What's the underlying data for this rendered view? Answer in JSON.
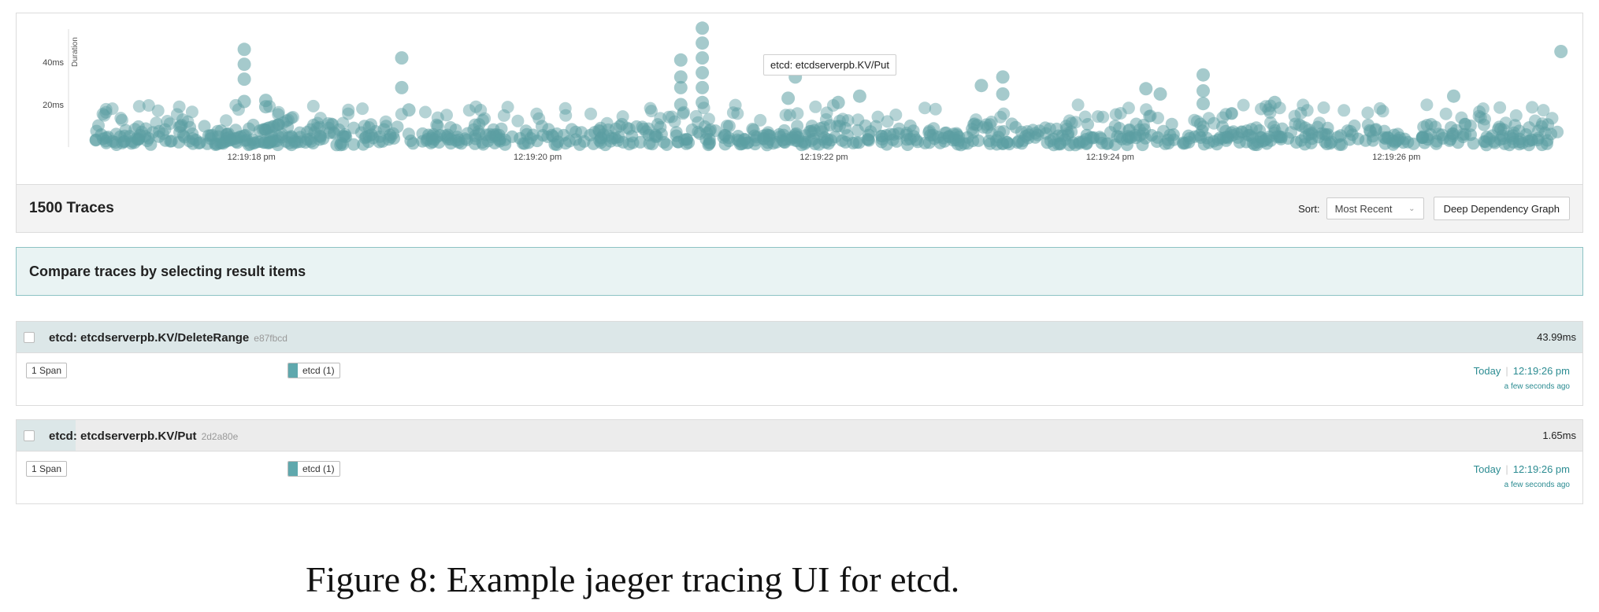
{
  "chart_data": {
    "type": "scatter",
    "title": "",
    "ylabel": "Duration",
    "xlabel": "",
    "y_ticks": [
      "40ms",
      "20ms"
    ],
    "y_tick_values": [
      40,
      20
    ],
    "x_ticks": [
      "12:19:18 pm",
      "12:19:20 pm",
      "12:19:22 pm",
      "12:19:24 pm",
      "12:19:26 pm"
    ],
    "x_tick_values": [
      18,
      20,
      22,
      24,
      26
    ],
    "xlim": [
      16.7,
      27.3
    ],
    "ylim": [
      0,
      60
    ],
    "grid": false,
    "point_color": "#5b9ea2",
    "tooltip": "etcd: etcdserverpb.KV/Put",
    "outliers": [
      {
        "x": 17.95,
        "y": 46.0
      },
      {
        "x": 17.95,
        "y": 39.0
      },
      {
        "x": 17.95,
        "y": 32.0
      },
      {
        "x": 17.95,
        "y": 21.5
      },
      {
        "x": 18.1,
        "y": 22.0
      },
      {
        "x": 18.1,
        "y": 19.0
      },
      {
        "x": 19.05,
        "y": 42.0
      },
      {
        "x": 19.05,
        "y": 28.0
      },
      {
        "x": 19.1,
        "y": 17.5
      },
      {
        "x": 21.0,
        "y": 41.0
      },
      {
        "x": 21.0,
        "y": 33.0
      },
      {
        "x": 21.0,
        "y": 28.0
      },
      {
        "x": 21.0,
        "y": 20.0
      },
      {
        "x": 21.15,
        "y": 56.0
      },
      {
        "x": 21.15,
        "y": 49.0
      },
      {
        "x": 21.15,
        "y": 42.0
      },
      {
        "x": 21.15,
        "y": 35.0
      },
      {
        "x": 21.15,
        "y": 28.0
      },
      {
        "x": 21.15,
        "y": 21.0
      },
      {
        "x": 21.8,
        "y": 33.0
      },
      {
        "x": 21.75,
        "y": 23.0
      },
      {
        "x": 22.1,
        "y": 21.0
      },
      {
        "x": 22.25,
        "y": 24.0
      },
      {
        "x": 23.1,
        "y": 29.0
      },
      {
        "x": 23.25,
        "y": 33.0
      },
      {
        "x": 23.25,
        "y": 25.0
      },
      {
        "x": 24.65,
        "y": 34.0
      },
      {
        "x": 24.65,
        "y": 26.5
      },
      {
        "x": 24.65,
        "y": 20.5
      },
      {
        "x": 24.25,
        "y": 27.5
      },
      {
        "x": 24.35,
        "y": 25.0
      },
      {
        "x": 25.15,
        "y": 21.0
      },
      {
        "x": 26.4,
        "y": 24.0
      },
      {
        "x": 27.15,
        "y": 45.0
      }
    ]
  },
  "results": {
    "count_label": "1500 Traces",
    "sort_label": "Sort:",
    "sort_value": "Most Recent",
    "deep_dependency_label": "Deep Dependency Graph"
  },
  "compare": {
    "text": "Compare traces by selecting result items"
  },
  "traces": [
    {
      "name": "etcd: etcdserverpb.KV/DeleteRange",
      "id": "e87fbcd",
      "duration": "43.99ms",
      "duration_fraction": 1.0,
      "spans": "1 Span",
      "service": "etcd (1)",
      "service_color": "#5fa8ad",
      "day": "Today",
      "time": "12:19:26 pm",
      "ago": "a few seconds ago"
    },
    {
      "name": "etcd: etcdserverpb.KV/Put",
      "id": "2d2a80e",
      "duration": "1.65ms",
      "duration_fraction": 0.0375,
      "spans": "1 Span",
      "service": "etcd (1)",
      "service_color": "#5fa8ad",
      "day": "Today",
      "time": "12:19:26 pm",
      "ago": "a few seconds ago"
    }
  ],
  "caption": "Figure 8: Example jaeger tracing UI for etcd."
}
